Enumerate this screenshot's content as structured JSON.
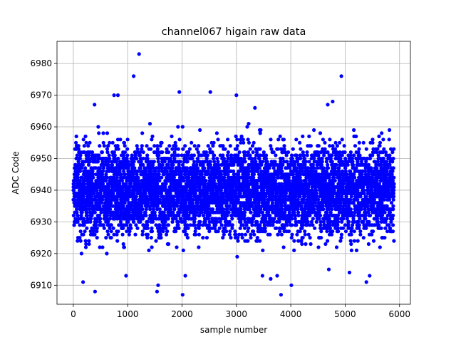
{
  "chart_data": {
    "type": "scatter",
    "title": "channel067 higain raw data",
    "xlabel": "sample number",
    "ylabel": "ADC Code",
    "xlim": [
      -300,
      6200
    ],
    "ylim": [
      6904,
      6987
    ],
    "xticks": [
      0,
      1000,
      2000,
      3000,
      4000,
      5000,
      6000
    ],
    "yticks": [
      6910,
      6920,
      6930,
      6940,
      6950,
      6960,
      6970,
      6980
    ],
    "grid": true,
    "marker_color": "#0000ff",
    "n_points": 5900,
    "baseline_mean": 6940,
    "typical_spread": 7,
    "outliers": [
      {
        "x": 1210,
        "y": 6983
      },
      {
        "x": 1110,
        "y": 6976
      },
      {
        "x": 4930,
        "y": 6976
      },
      {
        "x": 1950,
        "y": 6971
      },
      {
        "x": 2520,
        "y": 6971
      },
      {
        "x": 750,
        "y": 6970
      },
      {
        "x": 820,
        "y": 6970
      },
      {
        "x": 3000,
        "y": 6970
      },
      {
        "x": 4770,
        "y": 6968
      },
      {
        "x": 390,
        "y": 6967
      },
      {
        "x": 3340,
        "y": 6966
      },
      {
        "x": 4680,
        "y": 6967
      },
      {
        "x": 970,
        "y": 6913
      },
      {
        "x": 2060,
        "y": 6913
      },
      {
        "x": 3750,
        "y": 6913
      },
      {
        "x": 3480,
        "y": 6913
      },
      {
        "x": 5080,
        "y": 6914
      },
      {
        "x": 4700,
        "y": 6915
      },
      {
        "x": 3630,
        "y": 6912
      },
      {
        "x": 180,
        "y": 6911
      },
      {
        "x": 5390,
        "y": 6911
      },
      {
        "x": 5450,
        "y": 6913
      },
      {
        "x": 400,
        "y": 6908
      },
      {
        "x": 1540,
        "y": 6908
      },
      {
        "x": 1560,
        "y": 6910
      },
      {
        "x": 2010,
        "y": 6907
      },
      {
        "x": 3820,
        "y": 6907
      },
      {
        "x": 4010,
        "y": 6910
      }
    ]
  }
}
